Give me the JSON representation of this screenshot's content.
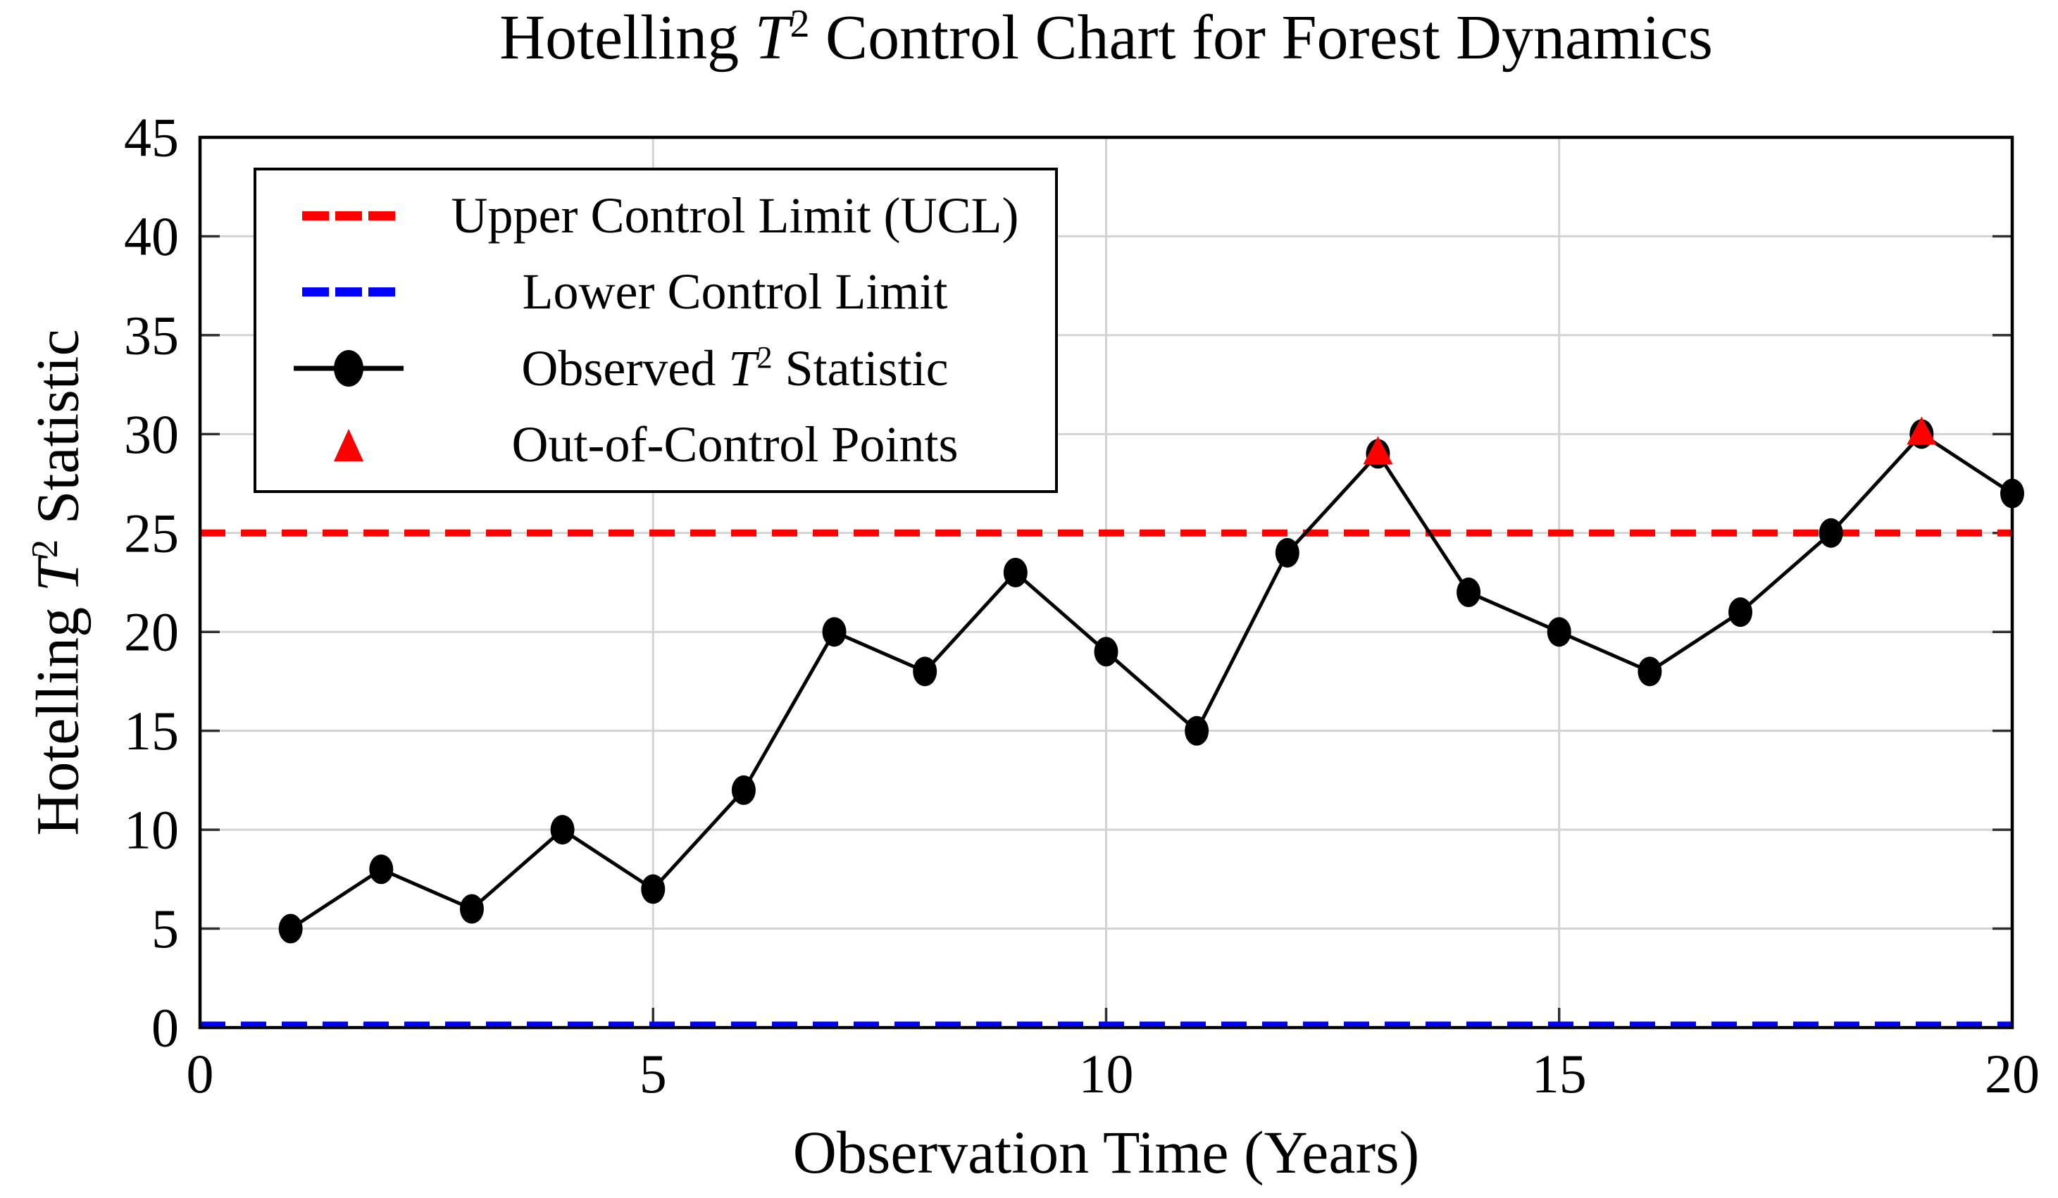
{
  "title": {
    "prefix": "Hotelling ",
    "math_var": "T",
    "math_sup": "2",
    "suffix": " Control Chart for Forest Dynamics"
  },
  "axes": {
    "x_label": {
      "text": "Observation Time (Years)"
    },
    "y_label": {
      "prefix": "Hotelling ",
      "math_var": "T",
      "math_sup": "2",
      "suffix": " Statistic"
    },
    "x_ticks": [
      0,
      5,
      10,
      15,
      20
    ],
    "y_ticks": [
      0,
      5,
      10,
      15,
      20,
      25,
      30,
      35,
      40,
      45
    ]
  },
  "legend": {
    "items": [
      {
        "label": "Upper Control Limit (UCL)",
        "symbol": "red-dashed-line"
      },
      {
        "label": "Lower Control Limit",
        "symbol": "blue-dashed-line"
      },
      {
        "label_prefix": "Observed ",
        "label_math_var": "T",
        "label_math_sup": "2",
        "label_suffix": " Statistic",
        "symbol": "black-line-circle-marker"
      },
      {
        "label": "Out-of-Control Points",
        "symbol": "red-triangle-marker"
      }
    ]
  },
  "chart_data": {
    "type": "line",
    "title": "Hotelling T^2 Control Chart for Forest Dynamics",
    "xlabel": "Observation Time (Years)",
    "ylabel": "Hotelling T^2 Statistic",
    "xlim": [
      0,
      20
    ],
    "ylim": [
      0,
      45
    ],
    "x_ticks": [
      0,
      5,
      10,
      15,
      20
    ],
    "y_ticks": [
      0,
      5,
      10,
      15,
      20,
      25,
      30,
      35,
      40,
      45
    ],
    "grid": true,
    "legend_position": "top-left",
    "x": [
      1,
      2,
      3,
      4,
      5,
      6,
      7,
      8,
      9,
      10,
      11,
      12,
      13,
      14,
      15,
      16,
      17,
      18,
      19,
      20
    ],
    "series": [
      {
        "name": "Observed T^2 Statistic",
        "values": [
          5,
          8,
          6,
          10,
          7,
          12,
          20,
          18,
          23,
          19,
          15,
          24,
          29,
          22,
          20,
          18,
          21,
          25,
          30,
          27
        ]
      }
    ],
    "upper_control_limit": 25,
    "lower_control_limit": 0,
    "out_of_control_points": [
      {
        "x": 13,
        "y": 29
      },
      {
        "x": 19,
        "y": 30
      }
    ],
    "colors": {
      "ucl": "#ff0000",
      "lcl": "#0000ff",
      "series": "#000000",
      "out_of_control": "#ff0000",
      "grid": "#d3d3d3",
      "frame": "#000000"
    }
  }
}
